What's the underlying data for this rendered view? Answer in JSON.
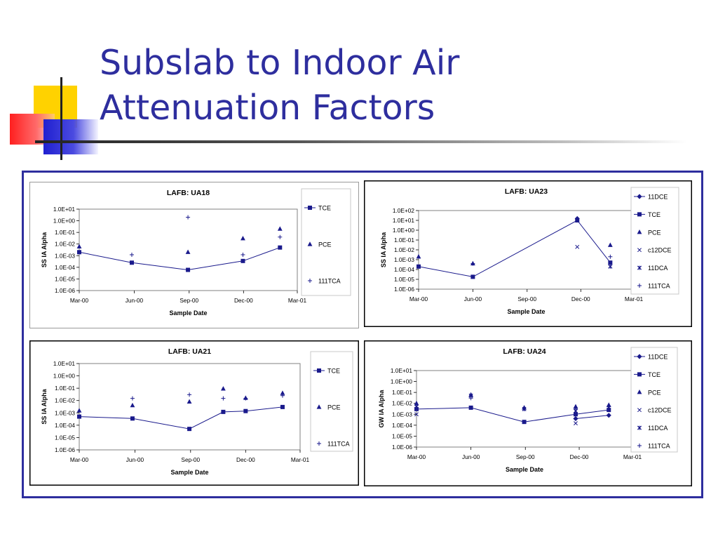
{
  "slide": {
    "title_line1": "Subslab to Indoor Air",
    "title_line2": "Attenuation Factors"
  },
  "colors": {
    "title": "#2e2e9e",
    "frame": "#2e2e9e",
    "series": "#1a1a8c",
    "deco_yellow": "#ffd200",
    "deco_red": "#ff2a2a",
    "deco_blue": "#2b2bd6"
  },
  "chart_data": [
    {
      "type": "line",
      "title": "LAFB: UA18",
      "xlabel": "Sample Date",
      "ylabel": "SS IA Alpha",
      "yscale": "log",
      "ylim": [
        "1.0E-06",
        "1.0E+01"
      ],
      "ytick_labels": [
        "1.0E-06",
        "1.0E-05",
        "1.0E-04",
        "1.0E-03",
        "1.0E-02",
        "1.0E-01",
        "1.0E+00",
        "1.0E+01"
      ],
      "xlim": [
        "2000-03-01",
        "2001-03-01"
      ],
      "xtick_labels": [
        "Mar-00",
        "Jun-00",
        "Sep-00",
        "Dec-00",
        "Mar-01"
      ],
      "grid": false,
      "legend_position": "right",
      "series": [
        {
          "name": "TCE",
          "marker": "square",
          "line": true,
          "points": [
            [
              "2000-03-01",
              0.002
            ],
            [
              "2000-05-28",
              0.00025
            ],
            [
              "2000-08-30",
              6e-05
            ],
            [
              "2000-11-30",
              0.00035
            ],
            [
              "2001-01-31",
              0.005
            ]
          ]
        },
        {
          "name": "PCE",
          "marker": "triangle",
          "line": false,
          "points": [
            [
              "2000-03-01",
              0.006
            ],
            [
              "2000-08-30",
              0.002
            ],
            [
              "2000-11-30",
              0.03
            ],
            [
              "2001-01-31",
              0.2
            ]
          ]
        },
        {
          "name": "111TCA",
          "marker": "plus",
          "line": false,
          "points": [
            [
              "2000-05-28",
              0.0012
            ],
            [
              "2000-08-30",
              2.0
            ],
            [
              "2000-11-30",
              0.0012
            ],
            [
              "2001-01-31",
              0.04
            ]
          ]
        }
      ]
    },
    {
      "type": "line",
      "title": "LAFB: UA23",
      "xlabel": "Sample Date",
      "ylabel": "SS IA Alpha",
      "yscale": "log",
      "ylim": [
        "1.0E-06",
        "1.0E+02"
      ],
      "ytick_labels": [
        "1.0E-06",
        "1.0E-05",
        "1.0E-04",
        "1.0E-03",
        "1.0E-02",
        "1.0E-01",
        "1.0E+00",
        "1.0E+01",
        "1.0E+02"
      ],
      "xlim": [
        "2000-03-01",
        "2001-03-01"
      ],
      "xtick_labels": [
        "Mar-00",
        "Jun-00",
        "Sep-00",
        "Dec-00",
        "Mar-01"
      ],
      "grid": false,
      "legend_position": "right",
      "series": [
        {
          "name": "11DCE",
          "marker": "diamond",
          "line": true,
          "points": [
            [
              "2000-11-25",
              15.0
            ]
          ]
        },
        {
          "name": "TCE",
          "marker": "square",
          "line": true,
          "points": [
            [
              "2000-03-01",
              0.0002
            ],
            [
              "2000-06-01",
              1.8e-05
            ],
            [
              "2000-11-25",
              10.0
            ],
            [
              "2001-01-20",
              0.0005
            ]
          ]
        },
        {
          "name": "PCE",
          "marker": "triangle",
          "line": false,
          "points": [
            [
              "2000-03-01",
              0.002
            ],
            [
              "2000-06-01",
              0.0004
            ],
            [
              "2001-01-20",
              0.03
            ]
          ]
        },
        {
          "name": "c12DCE",
          "marker": "x",
          "line": false,
          "points": [
            [
              "2000-11-25",
              0.02
            ]
          ]
        },
        {
          "name": "11DCA",
          "marker": "star",
          "line": false,
          "points": [
            [
              "2001-01-20",
              0.0002
            ]
          ]
        },
        {
          "name": "111TCA",
          "marker": "plus",
          "line": false,
          "points": [
            [
              "2000-06-01",
              0.0004
            ],
            [
              "2001-01-20",
              0.002
            ]
          ]
        }
      ]
    },
    {
      "type": "line",
      "title": "LAFB: UA21",
      "xlabel": "Sample Date",
      "ylabel": "SS IA Alpha",
      "yscale": "log",
      "ylim": [
        "1.0E-06",
        "1.0E+01"
      ],
      "ytick_labels": [
        "1.0E-06",
        "1.0E-05",
        "1.0E-04",
        "1.0E-03",
        "1.0E-02",
        "1.0E-01",
        "1.0E+00",
        "1.0E+01"
      ],
      "xlim": [
        "2000-03-01",
        "2001-03-01"
      ],
      "xtick_labels": [
        "Mar-00",
        "Jun-00",
        "Sep-00",
        "Dec-00",
        "Mar-01"
      ],
      "grid": false,
      "legend_position": "right",
      "series": [
        {
          "name": "TCE",
          "marker": "square",
          "line": true,
          "points": [
            [
              "2000-03-01",
              0.0005
            ],
            [
              "2000-05-28",
              0.00035
            ],
            [
              "2000-08-30",
              5e-05
            ],
            [
              "2000-10-25",
              0.0012
            ],
            [
              "2000-12-01",
              0.0014
            ],
            [
              "2001-01-31",
              0.003
            ]
          ]
        },
        {
          "name": "PCE",
          "marker": "triangle",
          "line": false,
          "points": [
            [
              "2000-03-01",
              0.0015
            ],
            [
              "2000-05-28",
              0.004
            ],
            [
              "2000-08-30",
              0.008
            ],
            [
              "2000-10-25",
              0.09
            ],
            [
              "2000-12-01",
              0.016
            ],
            [
              "2001-01-31",
              0.04
            ]
          ]
        },
        {
          "name": "111TCA",
          "marker": "plus",
          "line": false,
          "points": [
            [
              "2000-05-28",
              0.015
            ],
            [
              "2000-08-30",
              0.03
            ],
            [
              "2000-10-25",
              0.015
            ],
            [
              "2000-12-01",
              0.015
            ],
            [
              "2001-01-31",
              0.025
            ]
          ]
        }
      ]
    },
    {
      "type": "line",
      "title": "LAFB: UA24",
      "xlabel": "Sample Date",
      "ylabel": "GW IA Alpha",
      "yscale": "log",
      "ylim": [
        "1.0E-06",
        "1.0E+01"
      ],
      "ytick_labels": [
        "1.0E-06",
        "1.0E-05",
        "1.0E-04",
        "1.0E-03",
        "1.0E-02",
        "1.0E-01",
        "1.0E+00",
        "1.0E+01"
      ],
      "xlim": [
        "2000-03-01",
        "2001-03-01"
      ],
      "xtick_labels": [
        "Mar-00",
        "Jun-00",
        "Sep-00",
        "Dec-00",
        "Mar-01"
      ],
      "grid": false,
      "legend_position": "right",
      "series": [
        {
          "name": "11DCE",
          "marker": "diamond",
          "line": true,
          "points": [
            [
              "2000-11-25",
              0.0004
            ],
            [
              "2001-01-20",
              0.0008
            ]
          ]
        },
        {
          "name": "TCE",
          "marker": "square",
          "line": true,
          "points": [
            [
              "2000-03-01",
              0.003
            ],
            [
              "2000-06-01",
              0.004
            ],
            [
              "2000-08-30",
              0.0002
            ],
            [
              "2000-11-25",
              0.001
            ],
            [
              "2001-01-20",
              0.0025
            ]
          ]
        },
        {
          "name": "PCE",
          "marker": "triangle",
          "line": false,
          "points": [
            [
              "2000-03-01",
              0.01
            ],
            [
              "2000-06-01",
              0.06
            ],
            [
              "2000-08-30",
              0.004
            ],
            [
              "2000-11-25",
              0.005
            ],
            [
              "2001-01-20",
              0.007
            ]
          ]
        },
        {
          "name": "c12DCE",
          "marker": "x",
          "line": false,
          "points": [
            [
              "2000-03-01",
              0.001
            ],
            [
              "2000-11-25",
              0.00015
            ]
          ]
        },
        {
          "name": "11DCA",
          "marker": "star",
          "line": false,
          "points": [
            [
              "2000-03-01",
              0.005
            ],
            [
              "2000-06-01",
              0.05
            ],
            [
              "2000-08-30",
              0.003
            ],
            [
              "2000-11-25",
              0.002
            ],
            [
              "2001-01-20",
              0.004
            ]
          ]
        },
        {
          "name": "111TCA",
          "marker": "plus",
          "line": false,
          "points": [
            [
              "2000-03-01",
              0.004
            ],
            [
              "2000-06-01",
              0.03
            ],
            [
              "2000-08-30",
              0.003
            ],
            [
              "2000-11-25",
              0.003
            ],
            [
              "2001-01-20",
              0.005
            ]
          ]
        }
      ]
    }
  ]
}
